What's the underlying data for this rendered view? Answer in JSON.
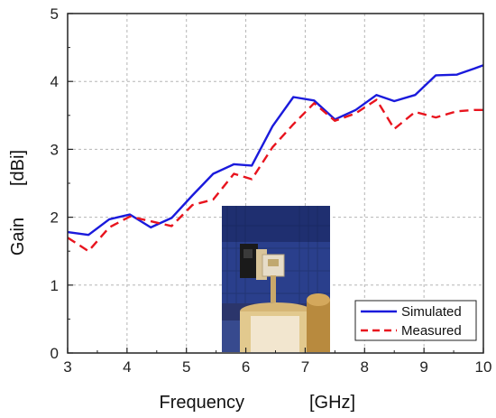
{
  "chart_data": {
    "type": "line",
    "xlabel": "Frequency",
    "xunit": "[GHz]",
    "ylabel": "Gain",
    "yunit": "[dBi]",
    "xlim": [
      3,
      10
    ],
    "ylim": [
      0,
      5
    ],
    "xticks": [
      3,
      4,
      5,
      6,
      7,
      8,
      9,
      10
    ],
    "yticks": [
      0,
      1,
      2,
      3,
      4,
      5
    ],
    "grid": true,
    "legend_position": "bottom-right",
    "series": [
      {
        "name": "Simulated",
        "color": "#1a1adc",
        "style": "solid",
        "x": [
          3.0,
          3.35,
          3.7,
          4.05,
          4.4,
          4.75,
          5.1,
          5.45,
          5.8,
          6.1,
          6.45,
          6.8,
          7.15,
          7.5,
          7.85,
          8.2,
          8.5,
          8.85,
          9.2,
          9.55,
          9.85,
          10.0
        ],
        "y": [
          1.78,
          1.74,
          1.97,
          2.04,
          1.85,
          1.99,
          2.32,
          2.64,
          2.78,
          2.76,
          3.34,
          3.77,
          3.72,
          3.44,
          3.58,
          3.8,
          3.71,
          3.8,
          4.09,
          4.1,
          4.19,
          4.24
        ]
      },
      {
        "name": "Measured",
        "color": "#e8141e",
        "style": "dashed",
        "x": [
          3.0,
          3.35,
          3.7,
          4.05,
          4.4,
          4.75,
          5.1,
          5.45,
          5.8,
          6.1,
          6.45,
          6.8,
          7.15,
          7.5,
          7.85,
          8.2,
          8.5,
          8.85,
          9.2,
          9.55,
          9.85,
          10.0
        ],
        "y": [
          1.7,
          1.5,
          1.85,
          2.01,
          1.94,
          1.87,
          2.18,
          2.26,
          2.64,
          2.56,
          3.03,
          3.37,
          3.68,
          3.42,
          3.53,
          3.73,
          3.3,
          3.55,
          3.47,
          3.56,
          3.58,
          3.58
        ]
      }
    ]
  },
  "inset": {
    "icon": "anechoic-chamber-photo",
    "colors": {
      "wall": "#2a3f8c",
      "absorber": "#1f2f70",
      "floor": "#c9a25a",
      "antenna": "#d8c49a"
    }
  }
}
